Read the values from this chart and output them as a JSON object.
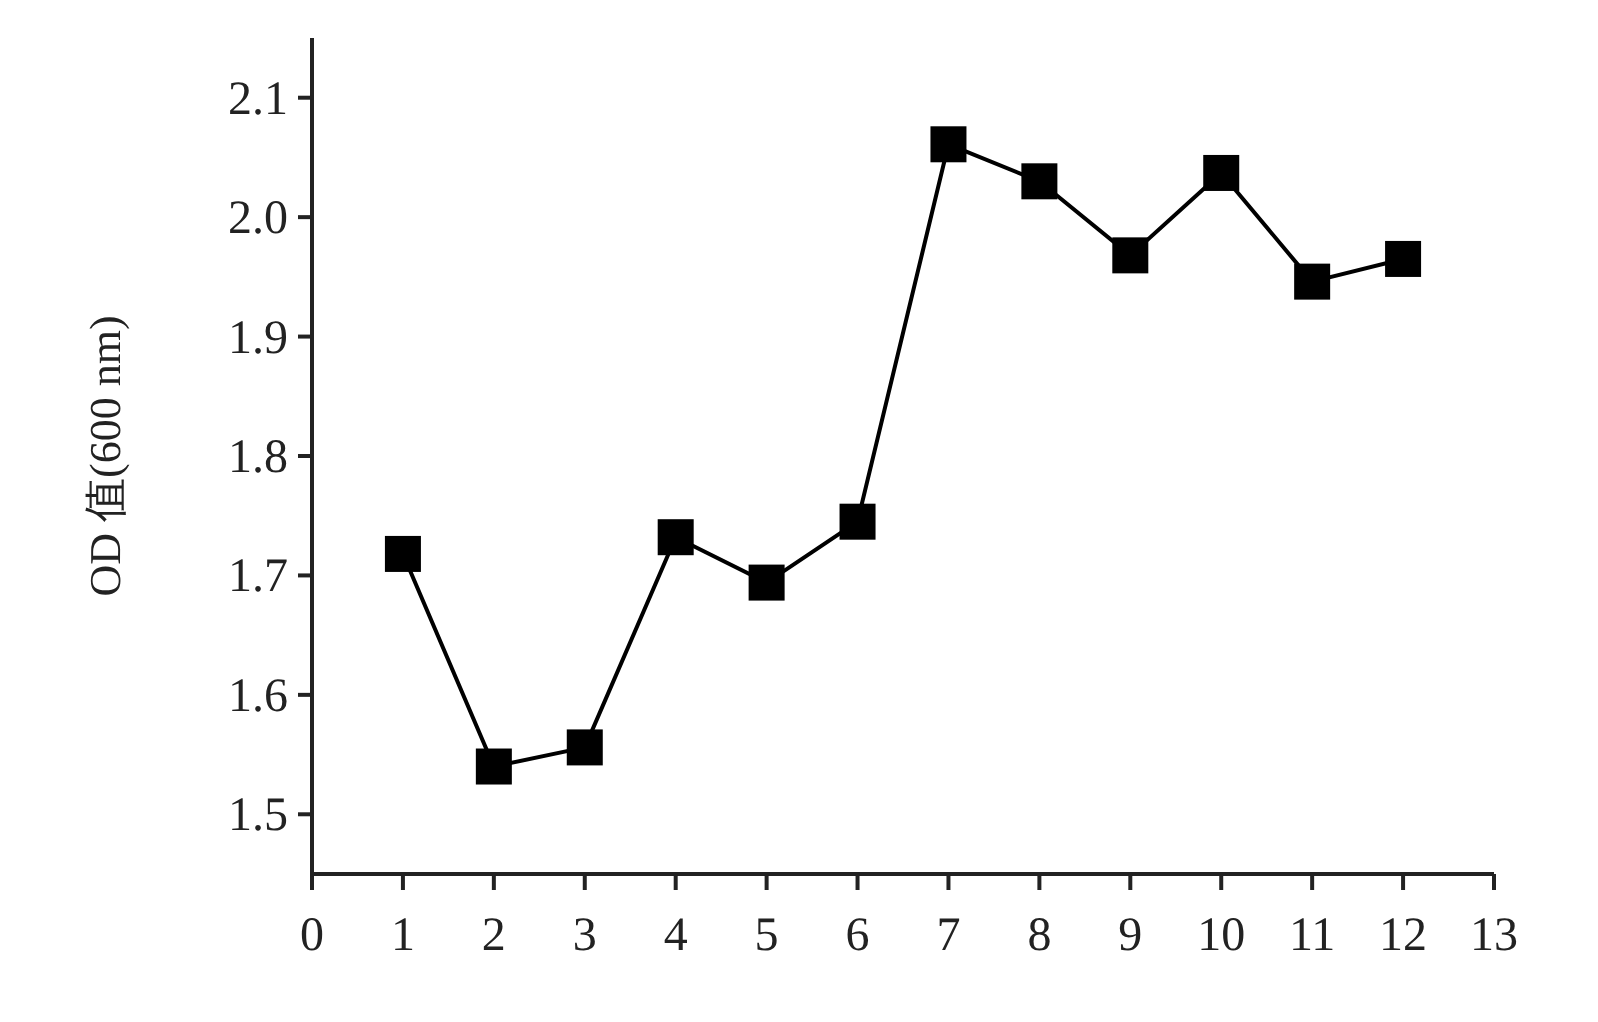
{
  "chart_data": {
    "type": "line",
    "ylabel": "OD 值(600 nm)",
    "x": [
      1,
      2,
      3,
      4,
      5,
      6,
      7,
      8,
      9,
      10,
      11,
      12
    ],
    "series": [
      {
        "color": "#000000",
        "values": [
          1.718,
          1.54,
          1.556,
          1.732,
          1.694,
          1.745,
          2.061,
          2.03,
          1.968,
          2.037,
          1.946,
          1.965
        ]
      }
    ],
    "marker": "square",
    "line_style": "solid",
    "xlim": [
      0,
      13
    ],
    "xticks": [
      0,
      1,
      2,
      3,
      4,
      5,
      6,
      7,
      8,
      9,
      10,
      11,
      12,
      13
    ],
    "ylim": [
      1.45,
      2.15
    ],
    "yticks": [
      {
        "value": 1.5,
        "label": "1.5"
      },
      {
        "value": 1.6,
        "label": "1.6"
      },
      {
        "value": 1.7,
        "label": "1.7"
      },
      {
        "value": 1.8,
        "label": "1.8"
      },
      {
        "value": 1.9,
        "label": "1.9"
      },
      {
        "value": 2.0,
        "label": "2.0"
      },
      {
        "value": 2.1,
        "label": "2.1"
      }
    ],
    "grid": false
  }
}
